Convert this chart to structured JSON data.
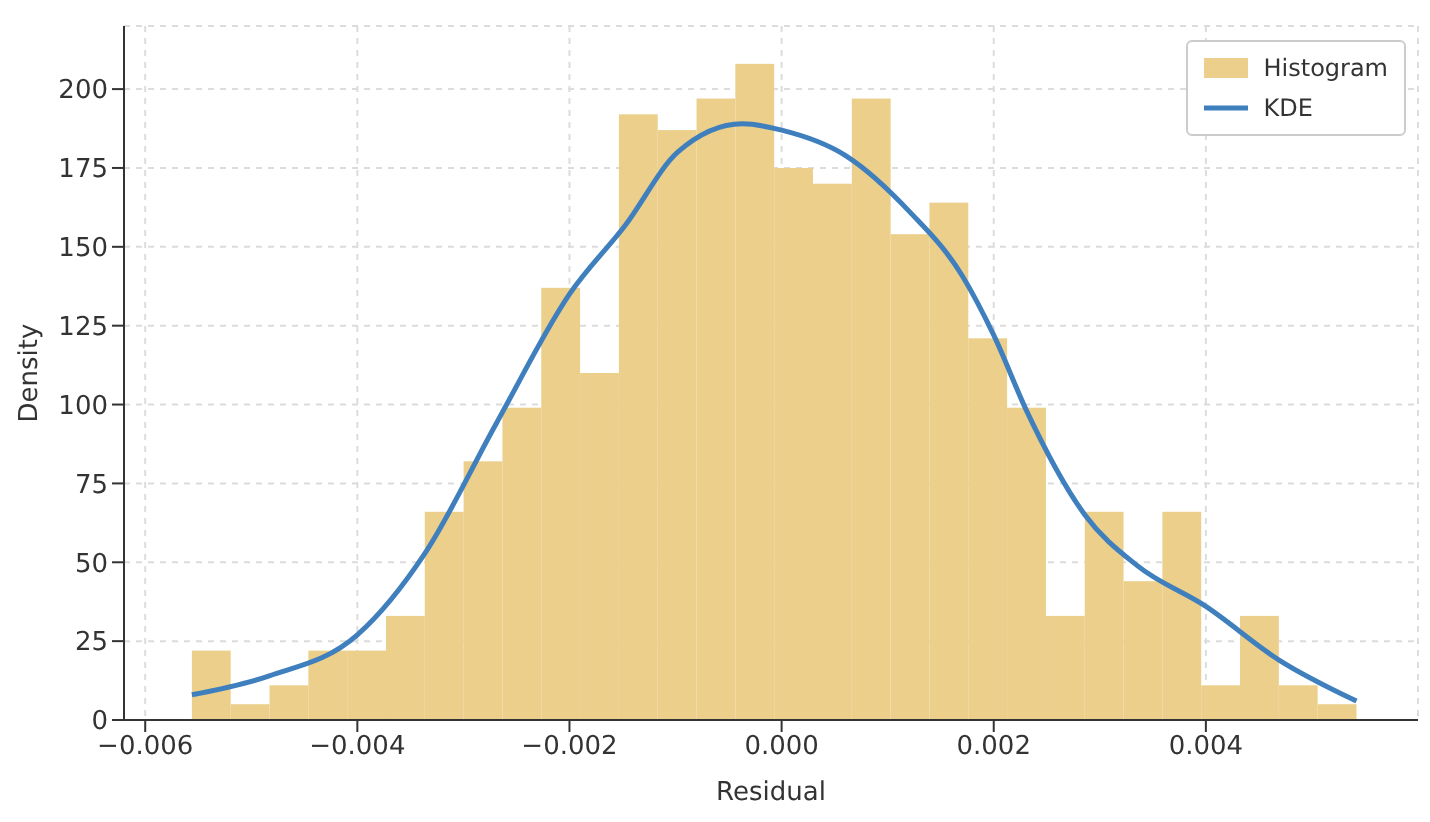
{
  "chart_data": {
    "type": "histogram",
    "xlabel": "Residual",
    "ylabel": "Density",
    "bins": [
      -0.00556,
      -0.005194,
      -0.004828,
      -0.004462,
      -0.004096,
      -0.00373,
      -0.003364,
      -0.002998,
      -0.002632,
      -0.002266,
      -0.0019,
      -0.001534,
      -0.001168,
      -0.000802,
      -0.000436,
      -7e-05,
      0.000296,
      0.000662,
      0.001028,
      0.001394,
      0.00176,
      0.002126,
      0.002492,
      0.002858,
      0.003224,
      0.00359,
      0.003956,
      0.004322,
      0.004688,
      0.005054,
      0.00542
    ],
    "series": [
      {
        "name": "Histogram",
        "type": "histogram",
        "color": "#ebcf8b",
        "values": [
          22,
          5,
          11,
          22,
          22,
          33,
          66,
          82,
          99,
          137,
          110,
          192,
          187,
          197,
          208,
          175,
          170,
          197,
          154,
          164,
          121,
          99,
          33,
          66,
          44,
          66,
          11,
          33,
          11,
          5
        ]
      },
      {
        "name": "KDE",
        "type": "line",
        "color": "#3f7fbd",
        "x": [
          -0.00556,
          -0.00483,
          -0.004,
          -0.00336,
          -0.00269,
          -0.002,
          -0.00147,
          -0.00098,
          -0.00037,
          0,
          0.0006,
          0.00121,
          0.0017,
          0.002,
          0.00231,
          0.00286,
          0.00335,
          0.004,
          0.00469,
          0.00542
        ],
        "values": [
          8,
          14,
          27,
          53,
          94,
          135,
          157,
          180,
          189,
          187,
          179,
          161,
          141,
          122,
          98,
          65,
          49,
          36,
          19,
          6
        ]
      }
    ],
    "xlim": [
      -0.0062,
      0.006
    ],
    "xticks": [
      {
        "value": -0.006,
        "label": "−0.006"
      },
      {
        "value": -0.004,
        "label": "−0.004"
      },
      {
        "value": -0.002,
        "label": "−0.002"
      },
      {
        "value": 0,
        "label": "0.000"
      },
      {
        "value": 0.002,
        "label": "0.002"
      },
      {
        "value": 0.004,
        "label": "0.004"
      }
    ],
    "ylim": [
      0,
      220
    ],
    "yticks": [
      0,
      25,
      50,
      75,
      100,
      125,
      150,
      175,
      200
    ],
    "grid": true,
    "legend": "top right"
  }
}
